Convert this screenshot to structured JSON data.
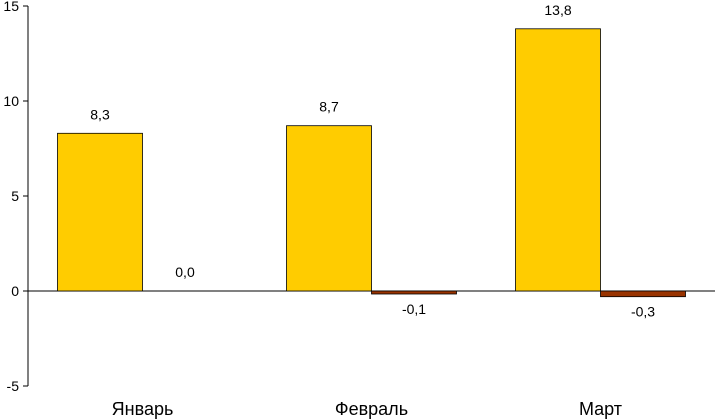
{
  "chart_data": {
    "type": "bar",
    "categories": [
      "Январь",
      "Февраль",
      "Март"
    ],
    "series": [
      {
        "values": [
          8.3,
          8.7,
          13.8
        ],
        "labels": [
          "8,3",
          "8,7",
          "13,8"
        ],
        "color": "#FFCC00"
      },
      {
        "values": [
          0.0,
          -0.1,
          -0.3
        ],
        "labels": [
          "0,0",
          "-0,1",
          "-0,3"
        ],
        "color": "#993300"
      }
    ],
    "ylim": [
      -5,
      15
    ],
    "yticks": [
      -5,
      0,
      5,
      10,
      15
    ],
    "ytick_labels": [
      "-5",
      "0",
      "5",
      "10",
      "15"
    ],
    "grid": false,
    "legend": false
  }
}
